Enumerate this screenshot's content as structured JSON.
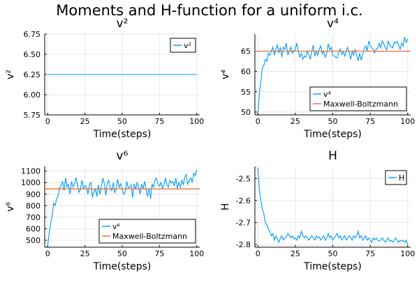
{
  "suptitle": "Moments and H-function for a uniform i.c.",
  "chart_data": [
    {
      "type": "line",
      "title": "v²",
      "xlabel": "Time(steps)",
      "ylabel": "v²",
      "xlim": [
        -2,
        102
      ],
      "ylim": [
        5.75,
        6.75
      ],
      "xticks": [
        0,
        25,
        50,
        75,
        100
      ],
      "yticks": [
        5.75,
        6.0,
        6.25,
        6.5,
        6.75
      ],
      "ytick_labels": [
        "5.75",
        "6.00",
        "6.25",
        "6.50",
        "6.75"
      ],
      "grid": true,
      "legend": "top-right",
      "series": [
        {
          "name": "v²",
          "color": "#009AFA",
          "kind": "line",
          "x": [
            0,
            100
          ],
          "y": [
            6.25,
            6.25
          ]
        }
      ]
    },
    {
      "type": "line",
      "title": "v⁴",
      "xlabel": "Time(steps)",
      "ylabel": "v⁴",
      "xlim": [
        -2,
        102
      ],
      "ylim": [
        49.3,
        69.2
      ],
      "xticks": [
        0,
        25,
        50,
        75,
        100
      ],
      "yticks": [
        50,
        55,
        60,
        65
      ],
      "ytick_labels": [
        "50",
        "55",
        "60",
        "65"
      ],
      "grid": true,
      "legend": "bottom-right",
      "series": [
        {
          "name": "v⁴",
          "color": "#009AFA",
          "kind": "line",
          "x": [
            0,
            1,
            2,
            3,
            4,
            5,
            6,
            7,
            8,
            9,
            10,
            11,
            12,
            13,
            14,
            15,
            16,
            17,
            18,
            19,
            20,
            21,
            22,
            23,
            24,
            25,
            26,
            27,
            28,
            29,
            30,
            31,
            32,
            33,
            34,
            35,
            36,
            37,
            38,
            39,
            40,
            41,
            42,
            43,
            44,
            45,
            46,
            47,
            48,
            49,
            50,
            51,
            52,
            53,
            54,
            55,
            56,
            57,
            58,
            59,
            60,
            61,
            62,
            63,
            64,
            65,
            66,
            67,
            68,
            69,
            70,
            71,
            72,
            73,
            74,
            75,
            76,
            77,
            78,
            79,
            80,
            81,
            82,
            83,
            84,
            85,
            86,
            87,
            88,
            89,
            90,
            91,
            92,
            93,
            94,
            95,
            96,
            97,
            98,
            99,
            100
          ],
          "y": [
            49.8,
            54.5,
            57.5,
            61,
            61.5,
            63,
            62.5,
            64.5,
            64,
            65,
            66,
            64,
            65.5,
            66.5,
            64.5,
            66,
            63.5,
            66,
            65.5,
            67,
            64,
            65,
            66,
            64.5,
            65,
            65.5,
            67,
            65,
            63.5,
            64.5,
            63,
            63.8,
            63.5,
            65,
            64.2,
            63,
            65,
            66.5,
            63.8,
            65,
            64,
            65.5,
            66.3,
            64.3,
            65,
            63.5,
            64.5,
            66.8,
            65.3,
            66,
            64,
            63.8,
            63.5,
            63.3,
            64.8,
            65.5,
            64.2,
            64.8,
            63.8,
            65,
            66,
            64.5,
            63,
            65,
            64,
            65.5,
            64,
            62.6,
            64.5,
            62.8,
            64.2,
            65.5,
            66.3,
            65,
            67.5,
            66.5,
            65.8,
            65.5,
            64.6,
            65.5,
            65.7,
            66.9,
            65.8,
            67.5,
            66.8,
            66,
            65.3,
            67.4,
            66.5,
            66,
            65.8,
            67.2,
            66.9,
            67.4,
            66.5,
            65.5,
            67,
            66.2,
            68.5,
            67.1,
            68
          ]
        },
        {
          "name": "Maxwell-Boltzmann",
          "color": "#E26F46",
          "kind": "hline",
          "x": [
            0,
            100
          ],
          "y": [
            65.0,
            65.0
          ]
        }
      ]
    },
    {
      "type": "line",
      "title": "v⁶",
      "xlabel": "Time(steps)",
      "ylabel": "v⁶",
      "xlim": [
        -2,
        102
      ],
      "ylim": [
        440,
        1140
      ],
      "xticks": [
        0,
        25,
        50,
        75,
        100
      ],
      "yticks": [
        500,
        600,
        700,
        800,
        900,
        1000,
        1100
      ],
      "ytick_labels": [
        "500",
        "600",
        "700",
        "800",
        "900",
        "1000",
        "1100"
      ],
      "grid": true,
      "legend": "bottom-right",
      "series": [
        {
          "name": "v⁶",
          "color": "#009AFA",
          "kind": "line",
          "x": [
            0,
            1,
            2,
            3,
            4,
            5,
            6,
            7,
            8,
            9,
            10,
            11,
            12,
            13,
            14,
            15,
            16,
            17,
            18,
            19,
            20,
            21,
            22,
            23,
            24,
            25,
            26,
            27,
            28,
            29,
            30,
            31,
            32,
            33,
            34,
            35,
            36,
            37,
            38,
            39,
            40,
            41,
            42,
            43,
            44,
            45,
            46,
            47,
            48,
            49,
            50,
            51,
            52,
            53,
            54,
            55,
            56,
            57,
            58,
            59,
            60,
            61,
            62,
            63,
            64,
            65,
            66,
            67,
            68,
            69,
            70,
            71,
            72,
            73,
            74,
            75,
            76,
            77,
            78,
            79,
            80,
            81,
            82,
            83,
            84,
            85,
            86,
            87,
            88,
            89,
            90,
            91,
            92,
            93,
            94,
            95,
            96,
            97,
            98,
            99,
            100
          ],
          "y": [
            455,
            560,
            640,
            720,
            820,
            800,
            860,
            880,
            955,
            970,
            1010,
            930,
            1040,
            960,
            985,
            900,
            1010,
            960,
            990,
            1045,
            980,
            915,
            940,
            1020,
            950,
            975,
            960,
            900,
            985,
            1000,
            870,
            920,
            945,
            880,
            980,
            900,
            965,
            1040,
            990,
            890,
            1000,
            1020,
            955,
            930,
            1000,
            910,
            955,
            1030,
            960,
            990,
            940,
            900,
            920,
            1010,
            955,
            960,
            980,
            870,
            990,
            940,
            1000,
            960,
            900,
            985,
            950,
            1010,
            930,
            880,
            950,
            860,
            990,
            960,
            1020,
            1040,
            985,
            970,
            1000,
            950,
            990,
            1040,
            980,
            960,
            1020,
            995,
            1010,
            970,
            1040,
            950,
            1000,
            960,
            1020,
            980,
            1050,
            1070,
            985,
            1020,
            1040,
            1000,
            1080,
            1060,
            1110
          ]
        },
        {
          "name": "Maxwell-Boltzmann",
          "color": "#E26F46",
          "kind": "hline",
          "x": [
            0,
            100
          ],
          "y": [
            945,
            945
          ]
        }
      ]
    },
    {
      "type": "line",
      "title": "H",
      "xlabel": "Time(steps)",
      "ylabel": "H",
      "xlim": [
        -2,
        102
      ],
      "ylim": [
        -2.812,
        -2.445
      ],
      "xticks": [
        0,
        25,
        50,
        75,
        100
      ],
      "yticks": [
        -2.5,
        -2.6,
        -2.7,
        -2.8
      ],
      "ytick_labels": [
        "-2.5",
        "-2.6",
        "-2.7",
        "-2.8"
      ],
      "grid": true,
      "legend": "top-right",
      "series": [
        {
          "name": "H",
          "color": "#009AFA",
          "kind": "line",
          "x": [
            0,
            1,
            2,
            3,
            4,
            5,
            6,
            7,
            8,
            9,
            10,
            11,
            12,
            13,
            14,
            15,
            16,
            17,
            18,
            19,
            20,
            21,
            22,
            23,
            24,
            25,
            26,
            27,
            28,
            29,
            30,
            31,
            32,
            33,
            34,
            35,
            36,
            37,
            38,
            39,
            40,
            41,
            42,
            43,
            44,
            45,
            46,
            47,
            48,
            49,
            50,
            51,
            52,
            53,
            54,
            55,
            56,
            57,
            58,
            59,
            60,
            61,
            62,
            63,
            64,
            65,
            66,
            67,
            68,
            69,
            70,
            71,
            72,
            73,
            74,
            75,
            76,
            77,
            78,
            79,
            80,
            81,
            82,
            83,
            84,
            85,
            86,
            87,
            88,
            89,
            90,
            91,
            92,
            93,
            94,
            95,
            96,
            97,
            98,
            99,
            100
          ],
          "y": [
            -2.45,
            -2.55,
            -2.6,
            -2.64,
            -2.66,
            -2.7,
            -2.71,
            -2.73,
            -2.74,
            -2.76,
            -2.75,
            -2.78,
            -2.76,
            -2.775,
            -2.79,
            -2.77,
            -2.76,
            -2.78,
            -2.77,
            -2.765,
            -2.75,
            -2.76,
            -2.77,
            -2.76,
            -2.775,
            -2.77,
            -2.78,
            -2.76,
            -2.77,
            -2.74,
            -2.76,
            -2.77,
            -2.76,
            -2.77,
            -2.78,
            -2.77,
            -2.76,
            -2.77,
            -2.78,
            -2.76,
            -2.77,
            -2.765,
            -2.78,
            -2.77,
            -2.76,
            -2.78,
            -2.77,
            -2.75,
            -2.77,
            -2.76,
            -2.78,
            -2.77,
            -2.76,
            -2.75,
            -2.77,
            -2.76,
            -2.78,
            -2.77,
            -2.76,
            -2.78,
            -2.77,
            -2.76,
            -2.77,
            -2.78,
            -2.76,
            -2.77,
            -2.76,
            -2.74,
            -2.77,
            -2.76,
            -2.78,
            -2.77,
            -2.76,
            -2.78,
            -2.77,
            -2.78,
            -2.79,
            -2.77,
            -2.78,
            -2.77,
            -2.78,
            -2.785,
            -2.78,
            -2.77,
            -2.78,
            -2.79,
            -2.78,
            -2.77,
            -2.785,
            -2.78,
            -2.79,
            -2.78,
            -2.77,
            -2.78,
            -2.79,
            -2.78,
            -2.785,
            -2.78,
            -2.79,
            -2.78,
            -2.8
          ]
        }
      ]
    }
  ]
}
